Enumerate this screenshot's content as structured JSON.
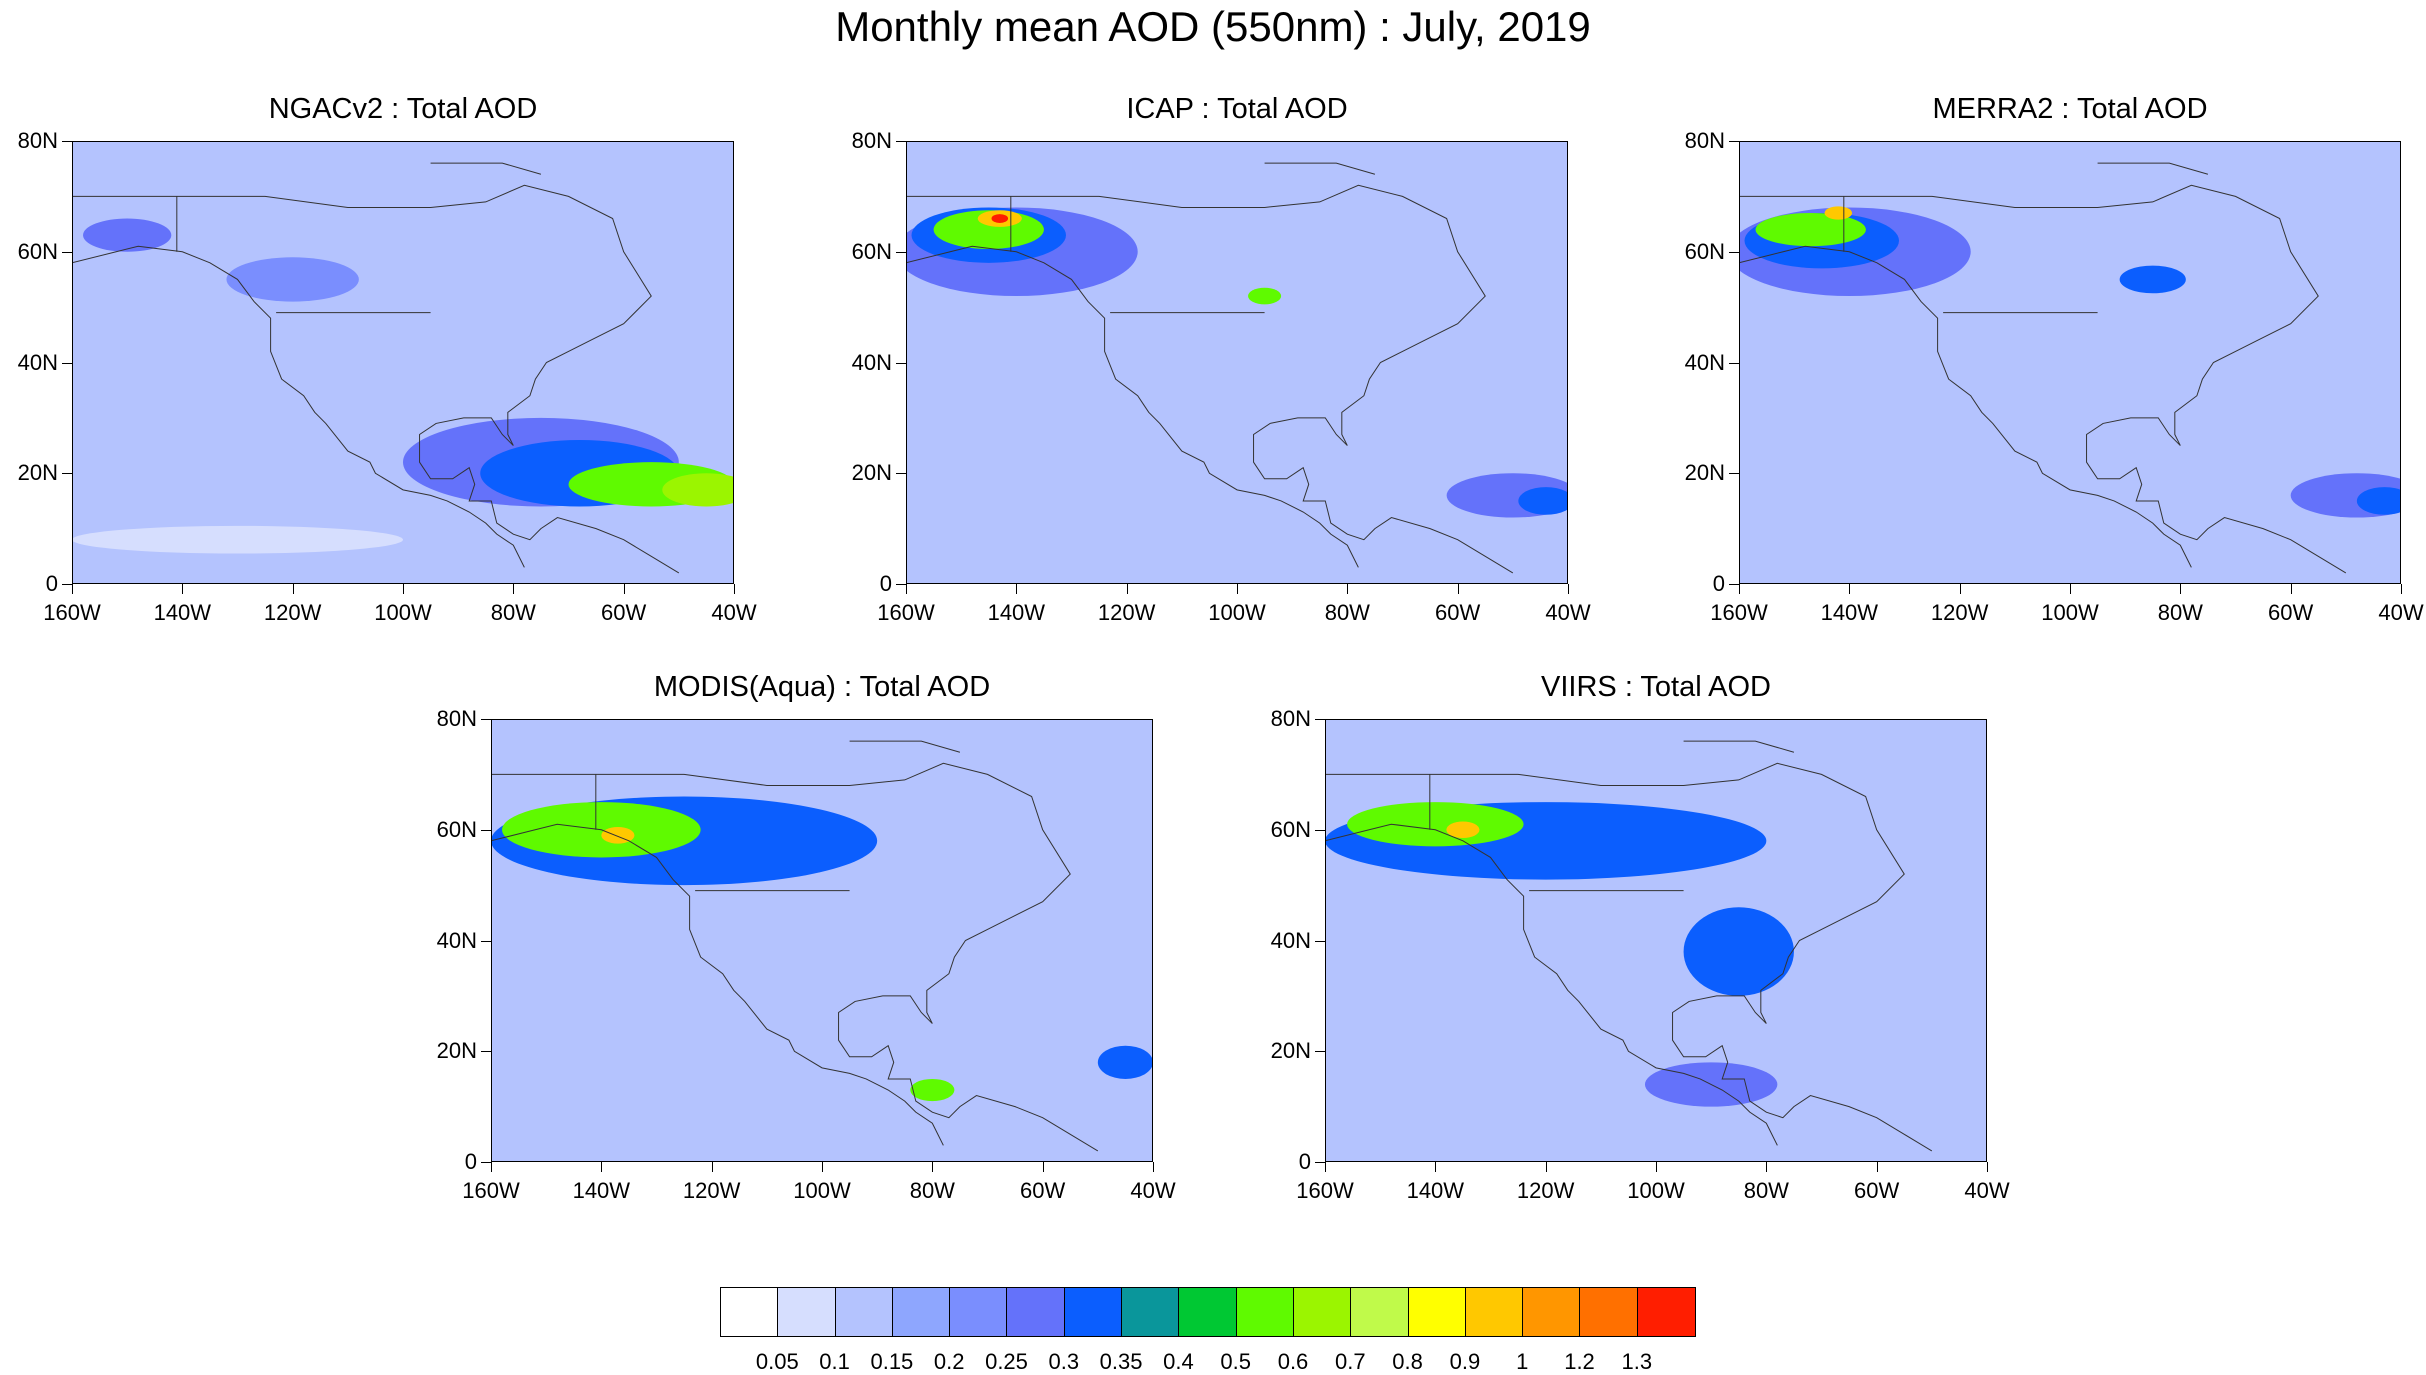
{
  "figure": {
    "title": "Monthly mean AOD (550nm) : July, 2019"
  },
  "chart_data": [
    {
      "type": "heatmap",
      "title": "NGACv2 : Total AOD",
      "x_ticks": [
        "160W",
        "140W",
        "120W",
        "100W",
        "80W",
        "60W",
        "40W"
      ],
      "y_ticks": [
        "80N",
        "60N",
        "40N",
        "20N",
        "0"
      ],
      "xlim": [
        -160,
        -40
      ],
      "ylim": [
        0,
        80
      ],
      "features": [
        {
          "lon": -150,
          "lat": 63,
          "rx": 8,
          "ry": 3,
          "aod": 0.25
        },
        {
          "lon": -120,
          "lat": 55,
          "rx": 12,
          "ry": 4,
          "aod": 0.2
        },
        {
          "lon": -75,
          "lat": 22,
          "rx": 25,
          "ry": 8,
          "aod": 0.25
        },
        {
          "lon": -68,
          "lat": 20,
          "rx": 18,
          "ry": 6,
          "aod": 0.3
        },
        {
          "lon": -55,
          "lat": 18,
          "rx": 15,
          "ry": 4,
          "aod": 0.5
        },
        {
          "lon": -45,
          "lat": 17,
          "rx": 8,
          "ry": 3,
          "aod": 0.6
        },
        {
          "lon": -130,
          "lat": 8,
          "rx": 30,
          "ry": 2.5,
          "aod": 0.05
        }
      ]
    },
    {
      "type": "heatmap",
      "title": "ICAP : Total AOD",
      "x_ticks": [
        "160W",
        "140W",
        "120W",
        "100W",
        "80W",
        "60W",
        "40W"
      ],
      "y_ticks": [
        "80N",
        "60N",
        "40N",
        "20N",
        "0"
      ],
      "xlim": [
        -160,
        -40
      ],
      "ylim": [
        0,
        80
      ],
      "features": [
        {
          "lon": -140,
          "lat": 60,
          "rx": 22,
          "ry": 8,
          "aod": 0.25
        },
        {
          "lon": -145,
          "lat": 63,
          "rx": 14,
          "ry": 5,
          "aod": 0.3
        },
        {
          "lon": -145,
          "lat": 64,
          "rx": 10,
          "ry": 3.5,
          "aod": 0.5
        },
        {
          "lon": -143,
          "lat": 66,
          "rx": 4,
          "ry": 1.5,
          "aod": 0.9
        },
        {
          "lon": -143,
          "lat": 66,
          "rx": 1.5,
          "ry": 0.8,
          "aod": 1.3
        },
        {
          "lon": -95,
          "lat": 52,
          "rx": 3,
          "ry": 1.5,
          "aod": 0.5
        },
        {
          "lon": -50,
          "lat": 16,
          "rx": 12,
          "ry": 4,
          "aod": 0.25
        },
        {
          "lon": -44,
          "lat": 15,
          "rx": 5,
          "ry": 2.5,
          "aod": 0.3
        }
      ]
    },
    {
      "type": "heatmap",
      "title": "MERRA2 : Total AOD",
      "x_ticks": [
        "160W",
        "140W",
        "120W",
        "100W",
        "80W",
        "60W",
        "40W"
      ],
      "y_ticks": [
        "80N",
        "60N",
        "40N",
        "20N",
        "0"
      ],
      "xlim": [
        -160,
        -40
      ],
      "ylim": [
        0,
        80
      ],
      "features": [
        {
          "lon": -140,
          "lat": 60,
          "rx": 22,
          "ry": 8,
          "aod": 0.25
        },
        {
          "lon": -145,
          "lat": 62,
          "rx": 14,
          "ry": 5,
          "aod": 0.3
        },
        {
          "lon": -147,
          "lat": 64,
          "rx": 10,
          "ry": 3,
          "aod": 0.5
        },
        {
          "lon": -142,
          "lat": 67,
          "rx": 2.5,
          "ry": 1.2,
          "aod": 0.9
        },
        {
          "lon": -85,
          "lat": 55,
          "rx": 6,
          "ry": 2.5,
          "aod": 0.3
        },
        {
          "lon": -48,
          "lat": 16,
          "rx": 12,
          "ry": 4,
          "aod": 0.25
        },
        {
          "lon": -43,
          "lat": 15,
          "rx": 5,
          "ry": 2.5,
          "aod": 0.3
        }
      ]
    },
    {
      "type": "heatmap",
      "title": "MODIS(Aqua) : Total AOD",
      "x_ticks": [
        "160W",
        "140W",
        "120W",
        "100W",
        "80W",
        "60W",
        "40W"
      ],
      "y_ticks": [
        "80N",
        "60N",
        "40N",
        "20N",
        "0"
      ],
      "xlim": [
        -160,
        -40
      ],
      "ylim": [
        0,
        80
      ],
      "features": [
        {
          "lon": -125,
          "lat": 58,
          "rx": 35,
          "ry": 8,
          "aod": 0.3
        },
        {
          "lon": -140,
          "lat": 60,
          "rx": 18,
          "ry": 5,
          "aod": 0.5
        },
        {
          "lon": -137,
          "lat": 59,
          "rx": 3,
          "ry": 1.5,
          "aod": 0.9
        },
        {
          "lon": -80,
          "lat": 13,
          "rx": 4,
          "ry": 2,
          "aod": 0.5
        },
        {
          "lon": -45,
          "lat": 18,
          "rx": 5,
          "ry": 3,
          "aod": 0.3
        }
      ]
    },
    {
      "type": "heatmap",
      "title": "VIIRS : Total AOD",
      "x_ticks": [
        "160W",
        "140W",
        "120W",
        "100W",
        "80W",
        "60W",
        "40W"
      ],
      "y_ticks": [
        "80N",
        "60N",
        "40N",
        "20N",
        "0"
      ],
      "xlim": [
        -160,
        -40
      ],
      "ylim": [
        0,
        80
      ],
      "features": [
        {
          "lon": -120,
          "lat": 58,
          "rx": 40,
          "ry": 7,
          "aod": 0.3
        },
        {
          "lon": -140,
          "lat": 61,
          "rx": 16,
          "ry": 4,
          "aod": 0.5
        },
        {
          "lon": -135,
          "lat": 60,
          "rx": 3,
          "ry": 1.5,
          "aod": 0.9
        },
        {
          "lon": -85,
          "lat": 38,
          "rx": 10,
          "ry": 8,
          "aod": 0.3
        },
        {
          "lon": -90,
          "lat": 14,
          "rx": 12,
          "ry": 4,
          "aod": 0.25
        }
      ]
    }
  ],
  "colorbar": {
    "colors": [
      "#ffffff",
      "#d6defe",
      "#b4c3fe",
      "#8ea6fe",
      "#7a8efe",
      "#6472fa",
      "#0b5efe",
      "#0a969b",
      "#00c833",
      "#5ffa00",
      "#9bf500",
      "#c0fa4a",
      "#ffff00",
      "#ffc800",
      "#ff9600",
      "#ff7000",
      "#ff1e00"
    ],
    "labels": [
      "0.05",
      "0.1",
      "0.15",
      "0.2",
      "0.25",
      "0.3",
      "0.35",
      "0.4",
      "0.5",
      "0.6",
      "0.7",
      "0.8",
      "0.9",
      "1",
      "1.2",
      "1.3"
    ]
  }
}
